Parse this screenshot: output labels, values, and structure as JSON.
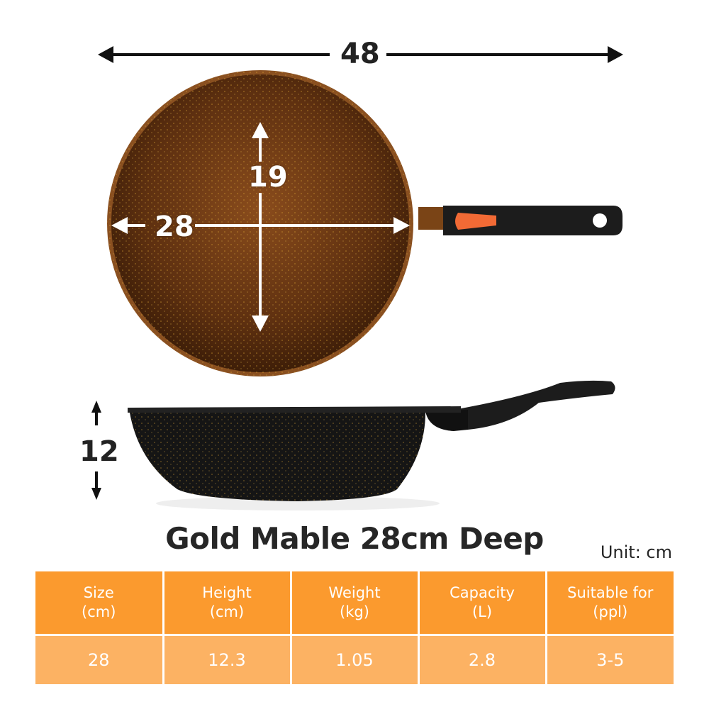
{
  "dimensions": {
    "total_length": "48",
    "inner_depth": "19",
    "diameter": "28",
    "height": "12"
  },
  "product": {
    "title": "Gold Mable 28cm Deep",
    "unit_label": "Unit: cm"
  },
  "table": {
    "headers": [
      {
        "line1": "Size",
        "line2": "(cm)"
      },
      {
        "line1": "Height",
        "line2": "(cm)"
      },
      {
        "line1": "Weight",
        "line2": "(kg)"
      },
      {
        "line1": "Capacity",
        "line2": "(L)"
      },
      {
        "line1": "Suitable for",
        "line2": "(ppl)"
      }
    ],
    "values": [
      "28",
      "12.3",
      "1.05",
      "2.8",
      "3-5"
    ]
  },
  "colors": {
    "header_bg": "#fb9a2e",
    "value_bg": "#fcb263",
    "pan_brown": "#7a4416",
    "pan_black": "#151515",
    "handle_accent": "#f26a35"
  }
}
